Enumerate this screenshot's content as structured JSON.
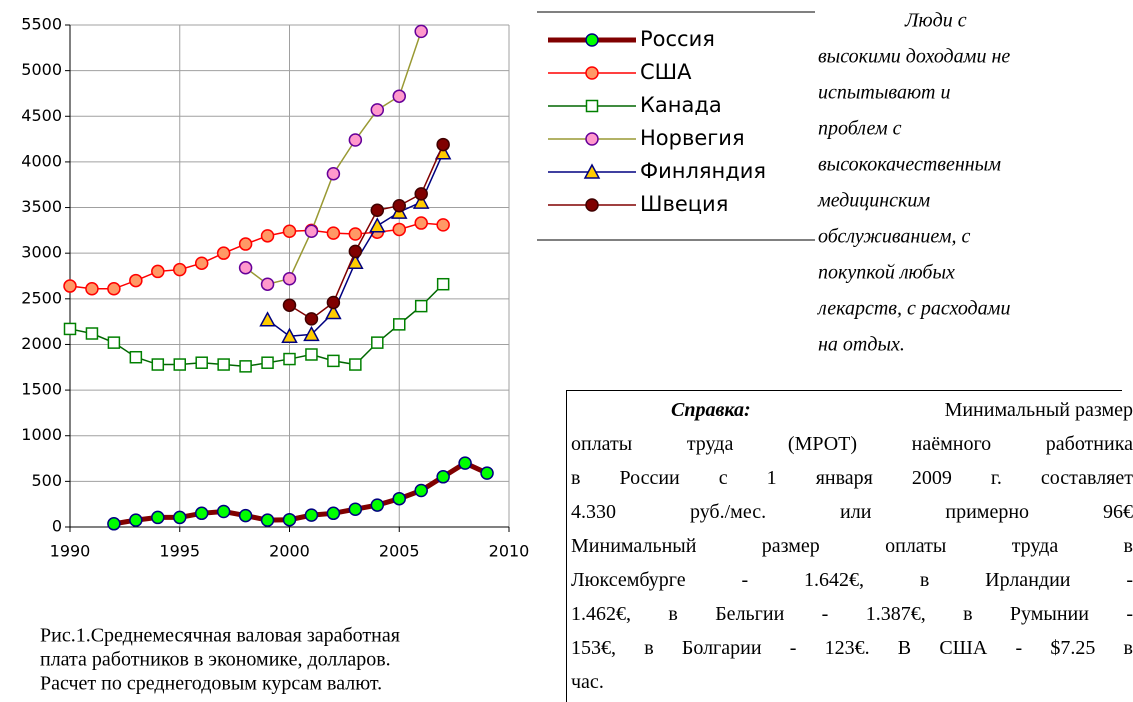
{
  "chart_data": {
    "type": "line",
    "x": [
      1990,
      1991,
      1992,
      1993,
      1994,
      1995,
      1996,
      1997,
      1998,
      1999,
      2000,
      2001,
      2002,
      2003,
      2004,
      2005,
      2006,
      2007,
      2008,
      2009
    ],
    "xlim": [
      1990,
      2010
    ],
    "xticks": [
      1990,
      1995,
      2000,
      2005,
      2010
    ],
    "ylim": [
      0,
      5500
    ],
    "yticks": [
      0,
      500,
      1000,
      1500,
      2000,
      2500,
      3000,
      3500,
      4000,
      4500,
      5000,
      5500
    ],
    "grid": true,
    "series": [
      {
        "name": "Россия",
        "color": "#800000",
        "marker": "circle",
        "marker_color": "#00ff00",
        "marker_edge": "#000080",
        "line_width": 5,
        "values": [
          null,
          null,
          35,
          75,
          105,
          105,
          150,
          170,
          125,
          75,
          80,
          130,
          150,
          195,
          240,
          310,
          400,
          550,
          700,
          590
        ]
      },
      {
        "name": "США",
        "color": "#ff0000",
        "marker": "circle",
        "marker_color": "#ff9966",
        "marker_edge": "#ff0000",
        "line_width": 1.5,
        "values": [
          2640,
          2610,
          2610,
          2700,
          2800,
          2820,
          2890,
          3000,
          3100,
          3190,
          3240,
          3250,
          3220,
          3210,
          3230,
          3260,
          3330,
          3310,
          null,
          null
        ]
      },
      {
        "name": "Канада",
        "color": "#006600",
        "marker": "square",
        "marker_color": "#ffffff",
        "marker_edge": "#008000",
        "line_width": 1.5,
        "values": [
          2170,
          2120,
          2020,
          1860,
          1780,
          1780,
          1800,
          1780,
          1760,
          1800,
          1840,
          1890,
          1820,
          1780,
          2020,
          2220,
          2420,
          2660,
          null,
          null
        ]
      },
      {
        "name": "Норвегия",
        "color": "#999933",
        "marker": "circle",
        "marker_color": "#ff99cc",
        "marker_edge": "#660099",
        "line_width": 1.5,
        "values": [
          null,
          null,
          null,
          null,
          null,
          null,
          null,
          null,
          2840,
          2660,
          2720,
          3240,
          3870,
          4240,
          4570,
          4720,
          5430,
          null,
          null,
          null
        ]
      },
      {
        "name": "Финляндия",
        "color": "#000080",
        "marker": "triangle",
        "marker_color": "#ffcc00",
        "marker_edge": "#000080",
        "line_width": 1.5,
        "values": [
          null,
          null,
          null,
          null,
          null,
          null,
          null,
          null,
          null,
          2270,
          2090,
          2110,
          2350,
          2900,
          3300,
          3450,
          3560,
          4100,
          null,
          null
        ]
      },
      {
        "name": "Швеция",
        "color": "#800000",
        "marker": "circle",
        "marker_color": "#800000",
        "marker_edge": "#400000",
        "line_width": 1.5,
        "values": [
          null,
          null,
          null,
          null,
          null,
          null,
          null,
          null,
          null,
          null,
          2430,
          2280,
          2460,
          3020,
          3470,
          3520,
          3650,
          4190,
          null,
          null
        ]
      }
    ]
  },
  "caption": [
    "Рис.1.Среднемесячная валовая заработная",
    "плата работников в экономике, долларов.",
    "Расчет по среднегодовым курсам валют."
  ],
  "note": [
    "Люди с",
    "высокими доходами не",
    "испытывают и",
    "проблем с",
    "высококачественным",
    "медицинским",
    "обслуживанием, с",
    "покупкой любых",
    "лекарств, с расходами",
    "на отдых."
  ],
  "reference": {
    "label": "Справка:",
    "lines": [
      "Минимальный размер",
      "оплаты труда (МРОТ) наёмного работника",
      "в России с 1 января 2009 г. составляет",
      "4.330 руб./мес. или примерно 96€",
      "Минимальный размер оплаты труда в",
      "Люксембурге - 1.642€, в Ирландии -",
      "1.462€, в Бельгии - 1.387€, в Румынии -",
      "153€, в Болгарии - 123€. В США - $7.25 в",
      "час."
    ]
  }
}
